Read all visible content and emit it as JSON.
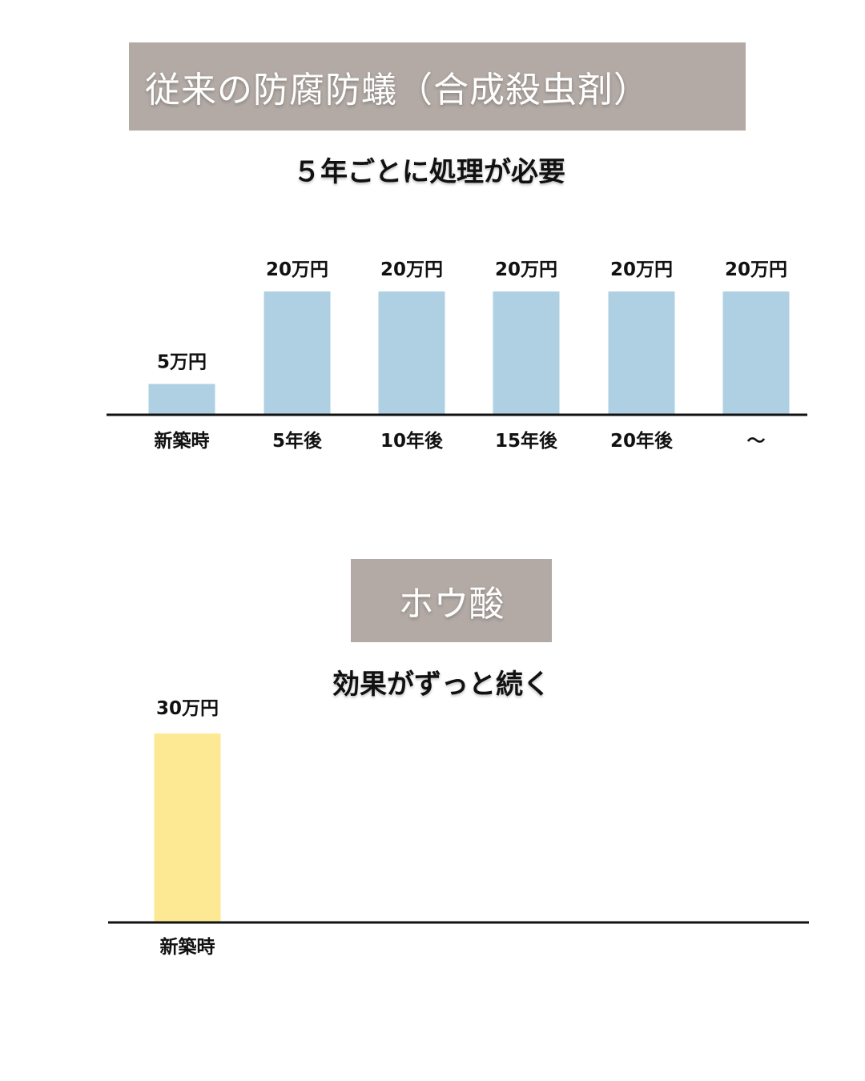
{
  "section1": {
    "heading": "従来の防腐防蟻（合成殺虫剤）",
    "subheading": "５年ごとに処理が必要"
  },
  "section2": {
    "heading": "ホウ酸",
    "subheading": "効果がずっと続く"
  },
  "chart_data": [
    {
      "type": "bar",
      "categories": [
        "新築時",
        "5年後",
        "10年後",
        "15年後",
        "20年後",
        "～"
      ],
      "values": [
        5,
        20,
        20,
        20,
        20,
        20
      ],
      "data_labels": [
        "5万円",
        "20万円",
        "20万円",
        "20万円",
        "20万円",
        "20万円"
      ],
      "color": "#aed0e2",
      "ylim": [
        0,
        20
      ],
      "grid": false
    },
    {
      "type": "bar",
      "categories": [
        "新築時"
      ],
      "values": [
        30
      ],
      "data_labels": [
        "30万円"
      ],
      "color": "#fde994",
      "ylim": [
        0,
        30
      ],
      "grid": false
    }
  ]
}
